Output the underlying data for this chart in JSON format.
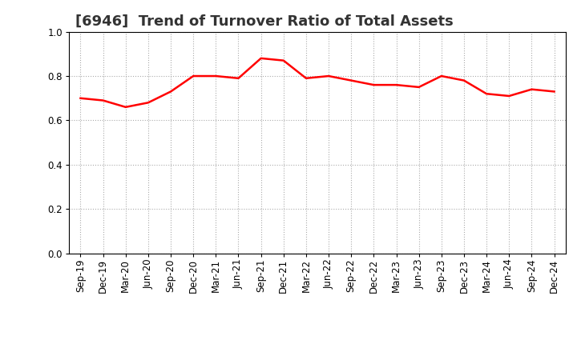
{
  "title": "[6946]  Trend of Turnover Ratio of Total Assets",
  "labels": [
    "Sep-19",
    "Dec-19",
    "Mar-20",
    "Jun-20",
    "Sep-20",
    "Dec-20",
    "Mar-21",
    "Jun-21",
    "Sep-21",
    "Dec-21",
    "Mar-22",
    "Jun-22",
    "Sep-22",
    "Dec-22",
    "Mar-23",
    "Jun-23",
    "Sep-23",
    "Dec-23",
    "Mar-24",
    "Jun-24",
    "Sep-24",
    "Dec-24"
  ],
  "values": [
    0.7,
    0.69,
    0.66,
    0.68,
    0.73,
    0.8,
    0.8,
    0.79,
    0.88,
    0.87,
    0.79,
    0.8,
    0.78,
    0.76,
    0.76,
    0.75,
    0.8,
    0.78,
    0.72,
    0.71,
    0.74,
    0.73
  ],
  "line_color": "#FF0000",
  "line_width": 1.8,
  "ylim": [
    0.0,
    1.0
  ],
  "yticks": [
    0.0,
    0.2,
    0.4,
    0.6,
    0.8,
    1.0
  ],
  "grid_color": "#aaaaaa",
  "bg_color": "#ffffff",
  "title_fontsize": 13,
  "tick_fontsize": 8.5,
  "title_color": "#333333"
}
